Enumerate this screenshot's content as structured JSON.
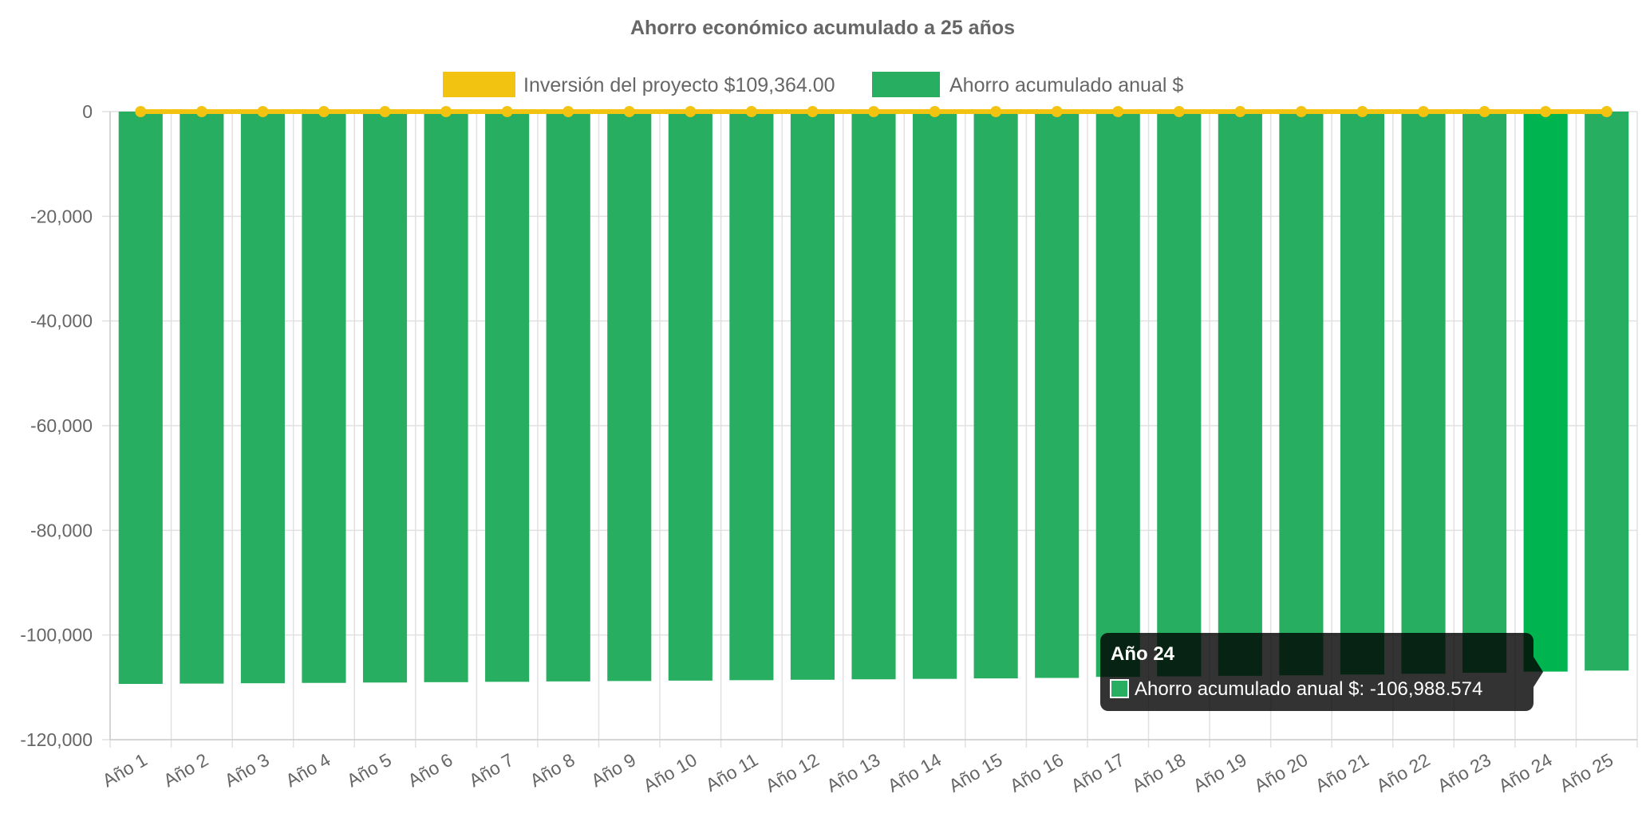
{
  "chart_data": {
    "type": "bar",
    "title": "Ahorro económico acumulado a 25 años",
    "categories": [
      "Año 1",
      "Año 2",
      "Año 3",
      "Año 4",
      "Año 5",
      "Año 6",
      "Año 7",
      "Año 8",
      "Año 9",
      "Año 10",
      "Año 11",
      "Año 12",
      "Año 13",
      "Año 14",
      "Año 15",
      "Año 16",
      "Año 17",
      "Año 18",
      "Año 19",
      "Año 20",
      "Año 21",
      "Año 22",
      "Año 23",
      "Año 24",
      "Año 25"
    ],
    "series": [
      {
        "name": "Inversión del proyecto $109,364.00",
        "type": "line",
        "color": "#F2C311",
        "values": [
          0,
          0,
          0,
          0,
          0,
          0,
          0,
          0,
          0,
          0,
          0,
          0,
          0,
          0,
          0,
          0,
          0,
          0,
          0,
          0,
          0,
          0,
          0,
          0,
          0
        ]
      },
      {
        "name": "Ahorro acumulado anual $",
        "type": "bar",
        "color": "#27AE60",
        "highlight_color": "#00B44F",
        "values": [
          -109345,
          -109280,
          -109215,
          -109150,
          -109080,
          -109010,
          -108940,
          -108865,
          -108790,
          -108710,
          -108630,
          -108550,
          -108465,
          -108380,
          -108290,
          -108200,
          -108000,
          -107900,
          -107800,
          -107700,
          -107550,
          -107400,
          -107200,
          -106988.574,
          -106800
        ]
      }
    ],
    "ylim": [
      -120000,
      0
    ],
    "yticks": [
      0,
      -20000,
      -40000,
      -60000,
      -80000,
      -100000,
      -120000
    ],
    "ytick_labels": [
      "0",
      "-20,000",
      "-40,000",
      "-60,000",
      "-80,000",
      "-100,000",
      "-120,000"
    ],
    "xlabel": "",
    "ylabel": "",
    "legend_position": "top-center",
    "grid": true,
    "highlight_index": 23,
    "tooltip": {
      "title": "Año 24",
      "body": "Ahorro acumulado anual $: -106,988.574"
    }
  }
}
